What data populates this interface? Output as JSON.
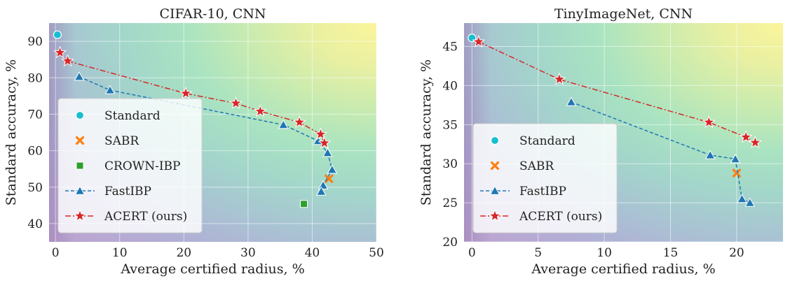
{
  "chart_data": [
    {
      "type": "scatter",
      "title": "CIFAR-10, CNN",
      "xlabel": "Average certified radius, %",
      "ylabel": "Standard accuracy, %",
      "xlim": [
        -1,
        50
      ],
      "ylim": [
        35,
        95
      ],
      "xticks": [
        "0",
        "10",
        "20",
        "30",
        "40",
        "50"
      ],
      "yticks": [
        "40",
        "50",
        "60",
        "70",
        "80",
        "90"
      ],
      "grid": true,
      "background": "contour gradient (purple low → yellow high)",
      "legend_position": "lower-left",
      "series": [
        {
          "name": "Standard",
          "style": "marker",
          "marker": "circle",
          "color": "#17becf",
          "points": [
            [
              0.3,
              91.8
            ]
          ]
        },
        {
          "name": "SABR",
          "style": "marker",
          "marker": "x",
          "color": "#ff7f0e",
          "points": [
            [
              42.6,
              52.3
            ]
          ]
        },
        {
          "name": "CROWN-IBP",
          "style": "marker",
          "marker": "square",
          "color": "#2ca02c",
          "points": [
            [
              38.7,
              45.4
            ]
          ]
        },
        {
          "name": "FastIBP",
          "style": "dashed",
          "marker": "triangle",
          "color": "#1f77b4",
          "points": [
            [
              3.7,
              80.3
            ],
            [
              8.5,
              76.6
            ],
            [
              35.5,
              67.1
            ],
            [
              40.9,
              62.7
            ],
            [
              42.4,
              59.4
            ],
            [
              43.1,
              54.8
            ],
            [
              41.7,
              50.5
            ],
            [
              41.4,
              48.8
            ]
          ]
        },
        {
          "name": "ACERT (ours)",
          "style": "dashdot",
          "marker": "star",
          "color": "#d62728",
          "points": [
            [
              0.7,
              86.9
            ],
            [
              1.9,
              84.6
            ],
            [
              20.3,
              75.7
            ],
            [
              28.1,
              73.0
            ],
            [
              31.9,
              70.8
            ],
            [
              38.0,
              67.8
            ],
            [
              41.3,
              64.5
            ],
            [
              41.9,
              62.1
            ]
          ]
        }
      ]
    },
    {
      "type": "scatter",
      "title": "TinyImageNet, CNN",
      "xlabel": "Average certified radius, %",
      "ylabel": "Standard accuracy, %",
      "xlim": [
        -0.6,
        23.5
      ],
      "ylim": [
        20,
        48
      ],
      "xticks": [
        "0",
        "5",
        "10",
        "15",
        "20"
      ],
      "yticks": [
        "20",
        "25",
        "30",
        "35",
        "40",
        "45"
      ],
      "grid": true,
      "background": "contour gradient (purple low → yellow high)",
      "legend_position": "lower-left",
      "series": [
        {
          "name": "Standard",
          "style": "marker",
          "marker": "circle",
          "color": "#17becf",
          "points": [
            [
              0.0,
              46.1
            ]
          ]
        },
        {
          "name": "SABR",
          "style": "marker",
          "marker": "x",
          "color": "#ff7f0e",
          "points": [
            [
              20.0,
              28.8
            ]
          ]
        },
        {
          "name": "FastIBP",
          "style": "dashed",
          "marker": "triangle",
          "color": "#1f77b4",
          "points": [
            [
              7.5,
              37.9
            ],
            [
              18.0,
              31.1
            ],
            [
              19.9,
              30.6
            ],
            [
              20.4,
              25.5
            ],
            [
              21.0,
              25.0
            ]
          ]
        },
        {
          "name": "ACERT (ours)",
          "style": "dashdot",
          "marker": "star",
          "color": "#d62728",
          "points": [
            [
              0.5,
              45.6
            ],
            [
              6.6,
              40.8
            ],
            [
              17.9,
              35.3
            ],
            [
              20.7,
              33.4
            ],
            [
              21.4,
              32.7
            ]
          ]
        }
      ]
    }
  ]
}
